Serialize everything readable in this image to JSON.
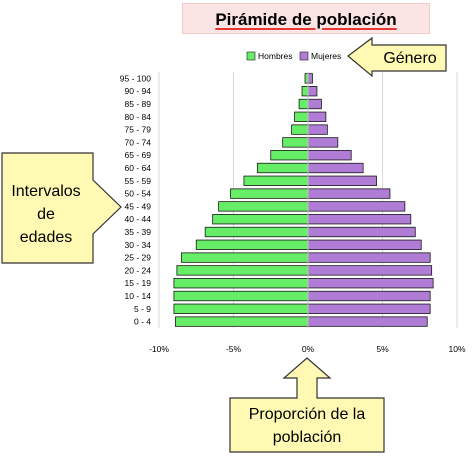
{
  "chart_data": {
    "type": "bar",
    "orientation": "horizontal",
    "title": "Pirámide de población",
    "categories": [
      "95 - 100",
      "90 - 94",
      "85 - 89",
      "80 - 84",
      "75 - 79",
      "70 - 74",
      "65 - 69",
      "60 - 64",
      "55 - 59",
      "50 - 54",
      "45 - 49",
      "40 - 44",
      "35 - 39",
      "30 - 34",
      "25 - 29",
      "20 - 24",
      "15 - 19",
      "10 - 14",
      "5 - 9",
      "0 - 4"
    ],
    "series": [
      {
        "name": "Hombres",
        "color": "#66ee66",
        "values": [
          -0.2,
          -0.4,
          -0.6,
          -0.9,
          -1.1,
          -1.7,
          -2.5,
          -3.4,
          -4.3,
          -5.2,
          -6.0,
          -6.4,
          -6.9,
          -7.5,
          -8.5,
          -8.8,
          -9.0,
          -9.0,
          -9.0,
          -8.9
        ]
      },
      {
        "name": "Mujeres",
        "color": "#b07cd6",
        "values": [
          0.3,
          0.6,
          0.9,
          1.2,
          1.3,
          2.0,
          2.9,
          3.7,
          4.6,
          5.5,
          6.5,
          6.9,
          7.2,
          7.6,
          8.2,
          8.3,
          8.4,
          8.2,
          8.2,
          8.0
        ]
      }
    ],
    "xlim": [
      -10,
      10
    ],
    "xticks": [
      "-10%",
      "-5%",
      "0%",
      "5%",
      "10%"
    ],
    "grid": true,
    "legend_position": "top-right"
  },
  "annotations": {
    "genero": "Género",
    "intervalos": [
      "Intervalos",
      "de",
      "edades"
    ],
    "proporcion": [
      "Proporción de la",
      "población"
    ]
  }
}
